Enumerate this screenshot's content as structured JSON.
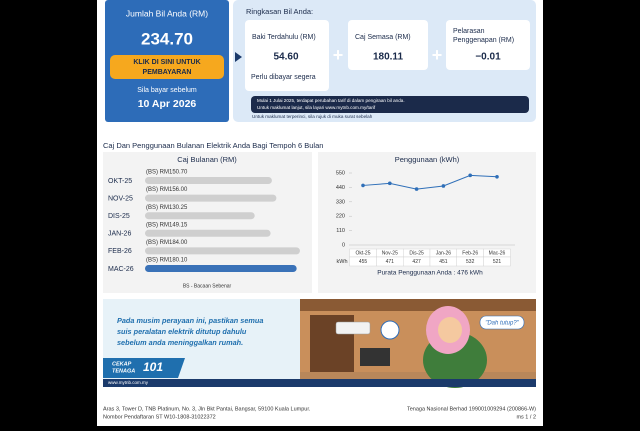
{
  "summary": {
    "label": "Jumlah Bil Anda (RM)",
    "amount": "234.70",
    "button": [
      "KLIK DI SINI UNTUK",
      "PEMBAYARAN"
    ],
    "due_label": "Sila bayar sebelum",
    "due_date": "10 Apr 2026"
  },
  "breakdown": {
    "title": "Ringkasan Bil Anda:",
    "items": [
      {
        "label": [
          "Baki Terdahulu (RM)"
        ],
        "value": "54.60",
        "note": "Perlu dibayar segera"
      },
      {
        "label": [
          "Caj Semasa (RM)"
        ],
        "value": "180.11"
      },
      {
        "label": [
          "Pelarasan",
          "Penggenapan (RM)"
        ],
        "value": "−0.01"
      }
    ],
    "notice": [
      "Mulai 1 Julai 2025, terdapat perubahan tarif di dalam pengiraan bil anda.",
      "Untuk maklumat lanjut, sila layari www.mytnb.com.my/tarif"
    ],
    "footnote": "Untuk maklumat terperinci, sila rujuk di muka surat sebelah"
  },
  "section_title": "Caj Dan Penggunaan Bulanan Elektrik Anda Bagi Tempoh 6 Bulan",
  "chart_data": [
    {
      "type": "bar",
      "title": "Caj Bulanan (RM)",
      "categories": [
        "OKT-25",
        "NOV-25",
        "DIS-25",
        "JAN-26",
        "FEB-26",
        "MAC-26"
      ],
      "values": [
        150.7,
        156.0,
        130.25,
        149.15,
        184.0,
        180.1
      ],
      "value_labels": [
        "(BS) RM150.70",
        "(BS) RM156.00",
        "(BS) RM130.25",
        "(BS) RM149.15",
        "(BS) RM184.00",
        "(BS) RM180.10"
      ],
      "colors": [
        "#cfcfcf",
        "#cfcfcf",
        "#cfcfcf",
        "#cfcfcf",
        "#cfcfcf",
        "#3a72b8"
      ],
      "xlim": [
        0,
        190
      ],
      "note": "BS - Bacaan Sebenar"
    },
    {
      "type": "line",
      "title": "Penggunaan (kWh)",
      "categories": [
        "Okt-25",
        "Nov-25",
        "Dis-25",
        "Jan-26",
        "Feb-26",
        "Mac-26"
      ],
      "values": [
        455,
        471,
        427,
        451,
        532,
        521
      ],
      "color": "#2f6fb8",
      "ylim": [
        0,
        550
      ],
      "yticks": [
        0,
        110,
        220,
        330,
        440,
        550
      ],
      "table_label": "kWh",
      "average": "Purata Penggunaan Anda : 476 kWh"
    }
  ],
  "banner": {
    "message": [
      "Pada musim perayaan ini, pastikan semua",
      "suis peralatan elektrik ditutup dahulu",
      "sebelum anda meninggalkan rumah."
    ],
    "logo": [
      "CEKAP",
      "TENAGA",
      "101"
    ],
    "speech": "\"Dah tutup?\"",
    "website": "www.mytnb.com.my"
  },
  "footer": {
    "address": "Aras 3, Tower D, TNB Platinum, No. 3, Jln Bkt Pantai, Bangsar, 59100 Kuala Lumpur.",
    "registration": "Nombor Pendaftaran ST W10-1808-31022372",
    "company": "Tenaga Nasional Berhad 199001009294 (200866-W)",
    "page": "ms 1 / 2"
  }
}
